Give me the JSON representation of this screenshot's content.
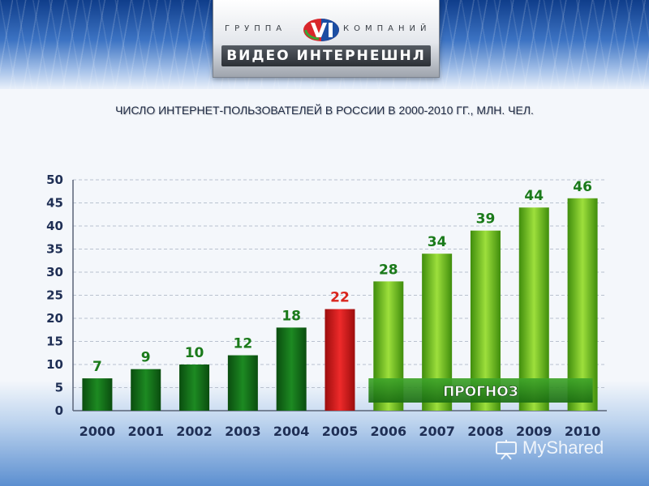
{
  "logo": {
    "word_left": "ГРУППА",
    "word_right": "КОМПАНИЙ",
    "name": "ВИДЕО ИНТЕРНЕШНЛ",
    "mark_letters": "VI",
    "mark_colors": {
      "red": "#d9262b",
      "green": "#3aa635",
      "blue": "#1c4ea3"
    }
  },
  "watermark": {
    "text": "MyShared",
    "icon": "presentation-board-icon"
  },
  "chart_data": {
    "type": "bar",
    "title": "ЧИСЛО ИНТЕРНЕТ-ПОЛЬЗОВАТЕЛЕЙ В РОССИИ В 2000-2010 ГГ., МЛН. ЧЕЛ.",
    "categories": [
      "2000",
      "2001",
      "2002",
      "2003",
      "2004",
      "2005",
      "2006",
      "2007",
      "2008",
      "2009",
      "2010"
    ],
    "values": [
      7,
      9,
      10,
      12,
      18,
      22,
      28,
      34,
      39,
      44,
      46
    ],
    "value_labels": [
      "7",
      "9",
      "10",
      "12",
      "18",
      "22",
      "28",
      "34",
      "39",
      "44",
      "46"
    ],
    "ylim": [
      0,
      50
    ],
    "yticks": [
      0,
      5,
      10,
      15,
      20,
      25,
      30,
      35,
      40,
      45,
      50
    ],
    "xlabel": "",
    "ylabel": "",
    "grid": true,
    "bar_groups": [
      "actual",
      "actual",
      "actual",
      "actual",
      "actual",
      "highlight",
      "forecast",
      "forecast",
      "forecast",
      "forecast",
      "forecast"
    ],
    "colors": {
      "actual": "#0f6e16",
      "highlight": "#d21b1b",
      "forecast": "#5fb418",
      "label_green": "#1a7a1a",
      "label_red": "#d9251d",
      "forecast_band": "#2e8b1e"
    },
    "annotation": {
      "text": "ПРОГНОЗ",
      "from_category": "2006",
      "to_category": "2010"
    }
  }
}
